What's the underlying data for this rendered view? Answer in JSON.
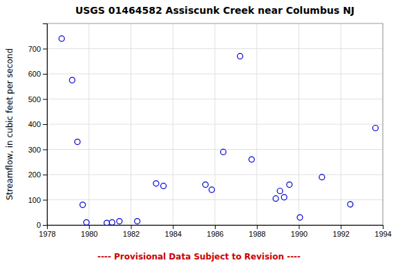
{
  "chart_data": {
    "type": "scatter",
    "title": "USGS 01464582 Assiscunk Creek near Columbus NJ",
    "y_label": "Streamflow, in cubic feet per second",
    "x": [
      1978.7,
      1979.2,
      1979.45,
      1979.7,
      1979.88,
      1980.85,
      1981.1,
      1981.45,
      1982.3,
      1983.2,
      1983.55,
      1985.55,
      1985.85,
      1986.4,
      1987.2,
      1987.75,
      1988.9,
      1989.1,
      1989.3,
      1989.55,
      1990.05,
      1991.1,
      1992.45,
      1993.65
    ],
    "values": [
      740,
      575,
      330,
      80,
      10,
      8,
      10,
      15,
      15,
      165,
      155,
      160,
      140,
      290,
      670,
      260,
      105,
      135,
      110,
      160,
      30,
      190,
      82,
      385
    ],
    "color": "#0000cc",
    "marker": "circle",
    "xlim": [
      1978,
      1994
    ],
    "ylim": [
      0,
      800
    ],
    "xticks": [
      1978,
      1980,
      1982,
      1984,
      1986,
      1988,
      1990,
      1992,
      1994
    ],
    "yticks": [
      0,
      100,
      200,
      300,
      400,
      500,
      600,
      700
    ],
    "grid": true,
    "annotations": [
      {
        "text": "---- Provisional Data Subject to Revision ----",
        "color": "#cc0000"
      }
    ]
  }
}
